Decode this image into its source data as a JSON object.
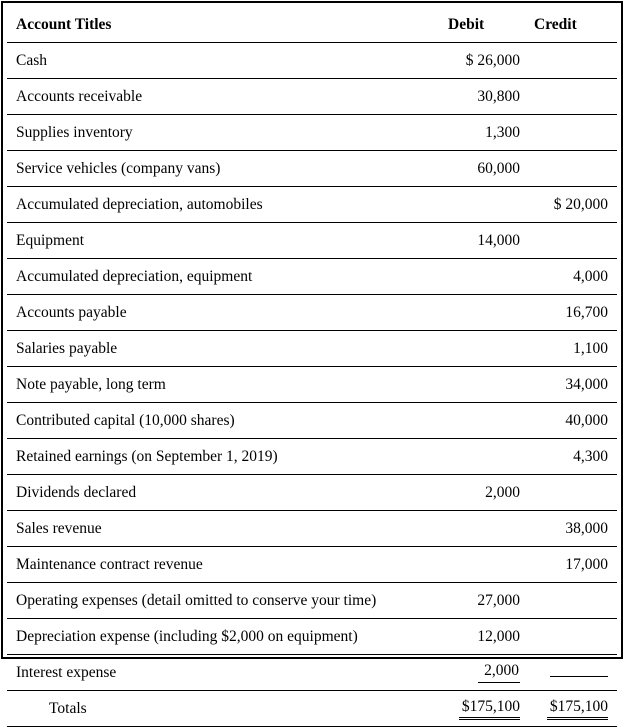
{
  "table": {
    "headers": {
      "title": "Account Titles",
      "debit": "Debit",
      "credit": "Credit"
    },
    "rows": [
      {
        "title": "Cash",
        "debit": "$ 26,000",
        "credit": ""
      },
      {
        "title": "Accounts receivable",
        "debit": "30,800",
        "credit": ""
      },
      {
        "title": "Supplies inventory",
        "debit": "1,300",
        "credit": ""
      },
      {
        "title": "Service vehicles (company vans)",
        "debit": "60,000",
        "credit": ""
      },
      {
        "title": "Accumulated depreciation, automobiles",
        "debit": "",
        "credit": "$ 20,000"
      },
      {
        "title": "Equipment",
        "debit": "14,000",
        "credit": ""
      },
      {
        "title": "Accumulated depreciation, equipment",
        "debit": "",
        "credit": "4,000"
      },
      {
        "title": "Accounts payable",
        "debit": "",
        "credit": "16,700"
      },
      {
        "title": "Salaries payable",
        "debit": "",
        "credit": "1,100"
      },
      {
        "title": "Note payable, long term",
        "debit": "",
        "credit": "34,000"
      },
      {
        "title": "Contributed capital (10,000 shares)",
        "debit": "",
        "credit": "40,000"
      },
      {
        "title": "Retained earnings (on September 1, 2019)",
        "debit": "",
        "credit": "4,300"
      },
      {
        "title": "Dividends declared",
        "debit": "2,000",
        "credit": ""
      },
      {
        "title": "Sales revenue",
        "debit": "",
        "credit": "38,000"
      },
      {
        "title": "Maintenance contract revenue",
        "debit": "",
        "credit": "17,000"
      },
      {
        "title": "Operating expenses (detail omitted to conserve your time)",
        "debit": "27,000",
        "credit": ""
      },
      {
        "title": "Depreciation expense (including $2,000 on equipment)",
        "debit": "12,000",
        "credit": ""
      },
      {
        "title": "Interest expense",
        "debit": "2,000",
        "credit": ""
      },
      {
        "title": "Totals",
        "debit": "$175,100",
        "credit": "$175,100"
      }
    ]
  }
}
